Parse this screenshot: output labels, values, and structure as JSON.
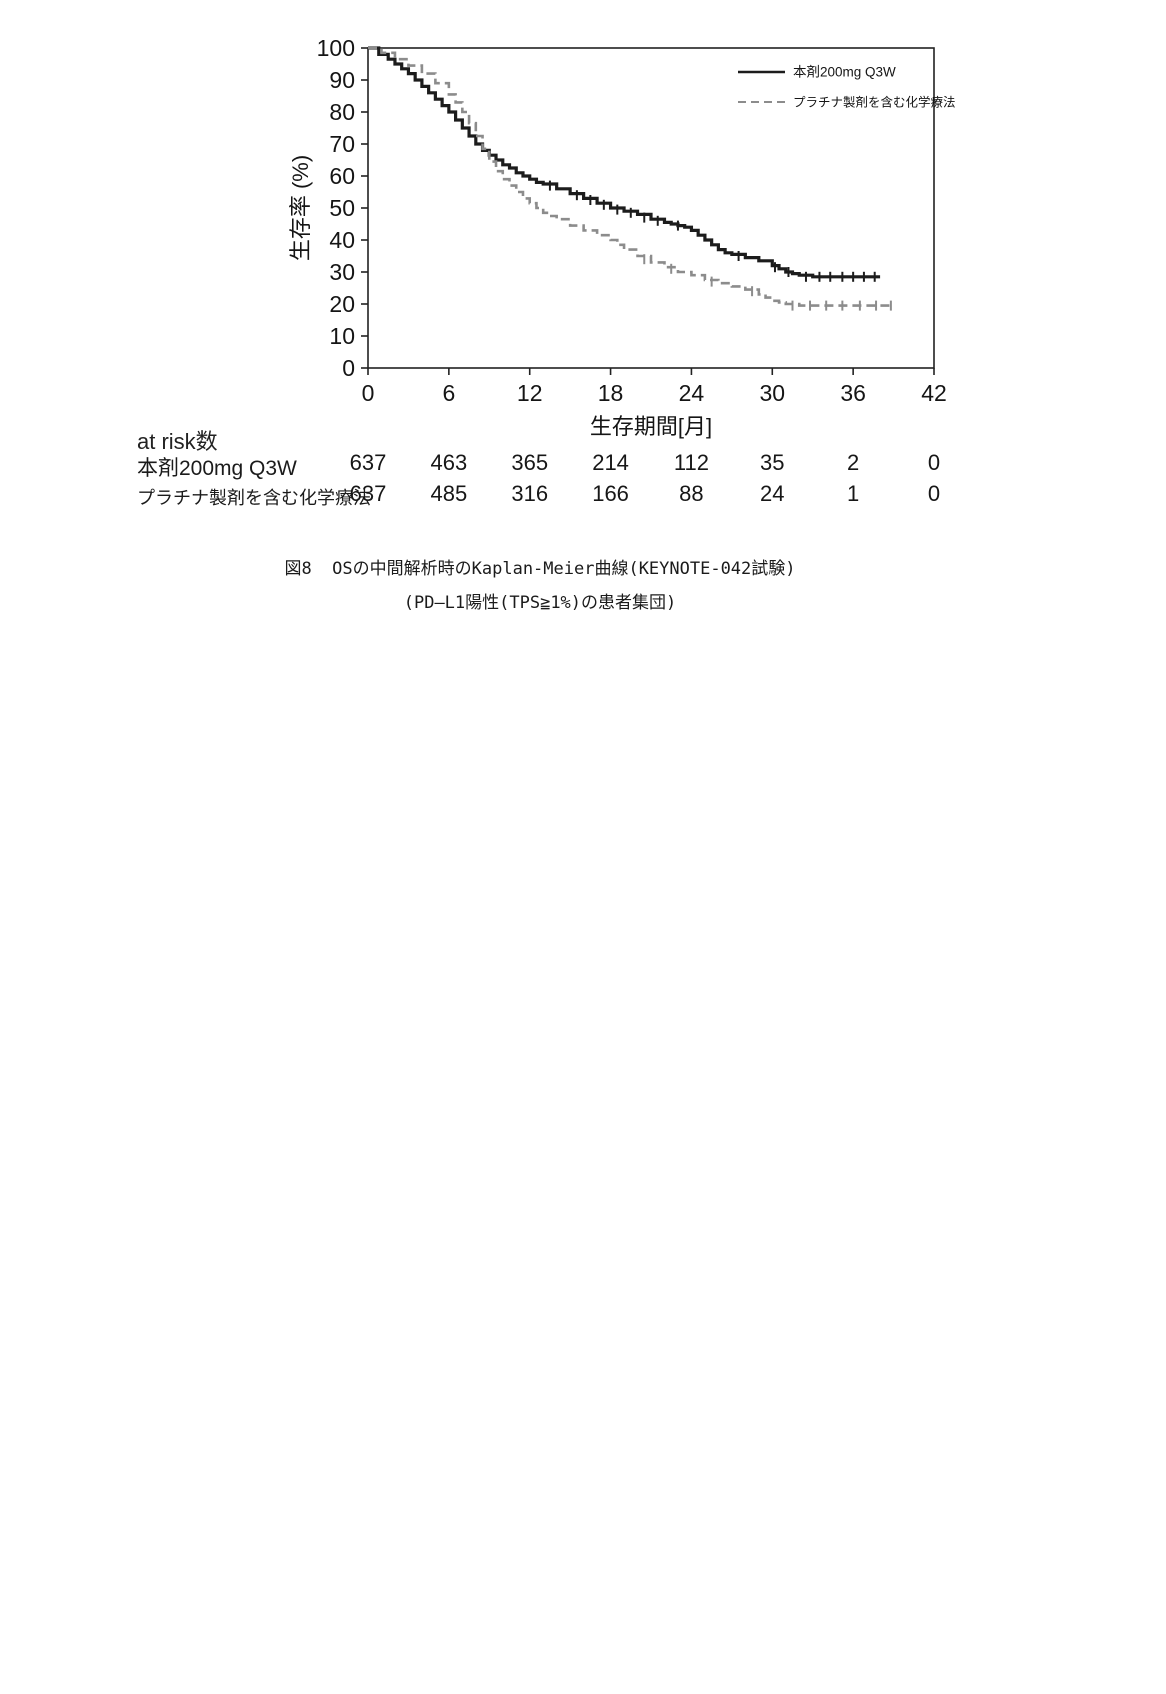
{
  "figure": {
    "caption_line1": "図8  OSの中間解析時のKaplan-Meier曲線(KEYNOTE-042試験)",
    "caption_line2": "(PD—L1陽性(TPS≧1%)の患者集団)"
  },
  "at_risk": {
    "title": "at risk数",
    "rows": [
      {
        "label": "本剤200mg Q3W",
        "values": [
          "637",
          "463",
          "365",
          "214",
          "112",
          "35",
          "2",
          "0"
        ]
      },
      {
        "label": "プラチナ製剤を含む化学療法",
        "values": [
          "637",
          "485",
          "316",
          "166",
          "88",
          "24",
          "1",
          "0"
        ]
      }
    ]
  },
  "chart_data": {
    "type": "line",
    "subtype": "kaplan-meier-step",
    "title": "",
    "xlabel": "生存期間[月]",
    "ylabel": "生存率 (%)",
    "xlim": [
      0,
      42
    ],
    "ylim": [
      0,
      100
    ],
    "xticks": [
      0,
      6,
      12,
      18,
      24,
      30,
      36,
      42
    ],
    "yticks": [
      0,
      10,
      20,
      30,
      40,
      50,
      60,
      70,
      80,
      90,
      100
    ],
    "grid": false,
    "legend_position": "top-right",
    "axis_color": "#222222",
    "series": [
      {
        "name": "本剤200mg Q3W",
        "color": "#1c1c1c",
        "dash": "solid",
        "width": 3.2,
        "points": [
          [
            0,
            100
          ],
          [
            0.8,
            98
          ],
          [
            1.5,
            96.5
          ],
          [
            2,
            95
          ],
          [
            2.5,
            93.5
          ],
          [
            3,
            92
          ],
          [
            3.5,
            90
          ],
          [
            4,
            88
          ],
          [
            4.5,
            86
          ],
          [
            5,
            84
          ],
          [
            5.5,
            82
          ],
          [
            6,
            80
          ],
          [
            6.5,
            77.5
          ],
          [
            7,
            75
          ],
          [
            7.5,
            72.5
          ],
          [
            8,
            70
          ],
          [
            8.5,
            68
          ],
          [
            9,
            66.5
          ],
          [
            9.5,
            65
          ],
          [
            10,
            63.5
          ],
          [
            10.5,
            62.5
          ],
          [
            11,
            61
          ],
          [
            11.5,
            60
          ],
          [
            12,
            59
          ],
          [
            12.5,
            58
          ],
          [
            13,
            57.5
          ],
          [
            14,
            56
          ],
          [
            15,
            54.5
          ],
          [
            16,
            53
          ],
          [
            17,
            51.5
          ],
          [
            18,
            50
          ],
          [
            19,
            49
          ],
          [
            20,
            48
          ],
          [
            21,
            46.5
          ],
          [
            22,
            45.5
          ],
          [
            22.5,
            45
          ],
          [
            23,
            44.5
          ],
          [
            23.5,
            44
          ],
          [
            24,
            43
          ],
          [
            24.5,
            41.5
          ],
          [
            25,
            40
          ],
          [
            25.5,
            38.5
          ],
          [
            26,
            37
          ],
          [
            26.5,
            36
          ],
          [
            27,
            35.5
          ],
          [
            28,
            34.5
          ],
          [
            29,
            33.5
          ],
          [
            30,
            32
          ],
          [
            30.5,
            31
          ],
          [
            31,
            30
          ],
          [
            31.5,
            29.5
          ],
          [
            32,
            29
          ],
          [
            33,
            28.5
          ],
          [
            38,
            28.5
          ]
        ],
        "censors": [
          [
            13.5,
            57
          ],
          [
            15.5,
            54
          ],
          [
            16.5,
            52.5
          ],
          [
            17.5,
            51
          ],
          [
            18.5,
            49.5
          ],
          [
            19.5,
            48.5
          ],
          [
            20.5,
            47
          ],
          [
            21.5,
            46
          ],
          [
            23,
            44.5
          ],
          [
            27.5,
            35
          ],
          [
            30.2,
            31.5
          ],
          [
            31.2,
            30
          ],
          [
            32.5,
            28.5
          ],
          [
            33.5,
            28.5
          ],
          [
            34.3,
            28.5
          ],
          [
            35.2,
            28.5
          ],
          [
            36,
            28.5
          ],
          [
            36.8,
            28.5
          ],
          [
            37.6,
            28.5
          ]
        ]
      },
      {
        "name": "プラチナ製剤を含む化学療法",
        "color": "#8c8c8c",
        "dash": "dashed",
        "width": 2.6,
        "points": [
          [
            0,
            100
          ],
          [
            1,
            98.5
          ],
          [
            2,
            96.5
          ],
          [
            3,
            94.5
          ],
          [
            4,
            92
          ],
          [
            5,
            89
          ],
          [
            6,
            85.5
          ],
          [
            6.5,
            83
          ],
          [
            7,
            80
          ],
          [
            7.5,
            76.5
          ],
          [
            8,
            72.5
          ],
          [
            8.5,
            68.5
          ],
          [
            9,
            64.5
          ],
          [
            9.5,
            61.5
          ],
          [
            10,
            59
          ],
          [
            10.5,
            57
          ],
          [
            11,
            55
          ],
          [
            11.5,
            53
          ],
          [
            12,
            51.5
          ],
          [
            12.5,
            50
          ],
          [
            13,
            48.5
          ],
          [
            13.5,
            47.5
          ],
          [
            14,
            46.5
          ],
          [
            15,
            44.5
          ],
          [
            16,
            43
          ],
          [
            17,
            41.5
          ],
          [
            18,
            40
          ],
          [
            18.5,
            38.5
          ],
          [
            19,
            37
          ],
          [
            20,
            35
          ],
          [
            21,
            33
          ],
          [
            22,
            31.5
          ],
          [
            23,
            30
          ],
          [
            24,
            29
          ],
          [
            25,
            27.5
          ],
          [
            26,
            26.5
          ],
          [
            27,
            25.5
          ],
          [
            28,
            24.5
          ],
          [
            29,
            23
          ],
          [
            29.5,
            22
          ],
          [
            30,
            21
          ],
          [
            30.5,
            20.5
          ],
          [
            31,
            20
          ],
          [
            32,
            19.5
          ],
          [
            39,
            19.5
          ]
        ],
        "censors": [
          [
            20.5,
            34
          ],
          [
            22.5,
            31
          ],
          [
            25.5,
            27
          ],
          [
            28.5,
            24
          ],
          [
            31.5,
            19.5
          ],
          [
            32.8,
            19.5
          ],
          [
            34,
            19.5
          ],
          [
            35.2,
            19.5
          ],
          [
            36.5,
            19.5
          ],
          [
            37.7,
            19.5
          ],
          [
            38.8,
            19.5
          ]
        ]
      }
    ]
  }
}
